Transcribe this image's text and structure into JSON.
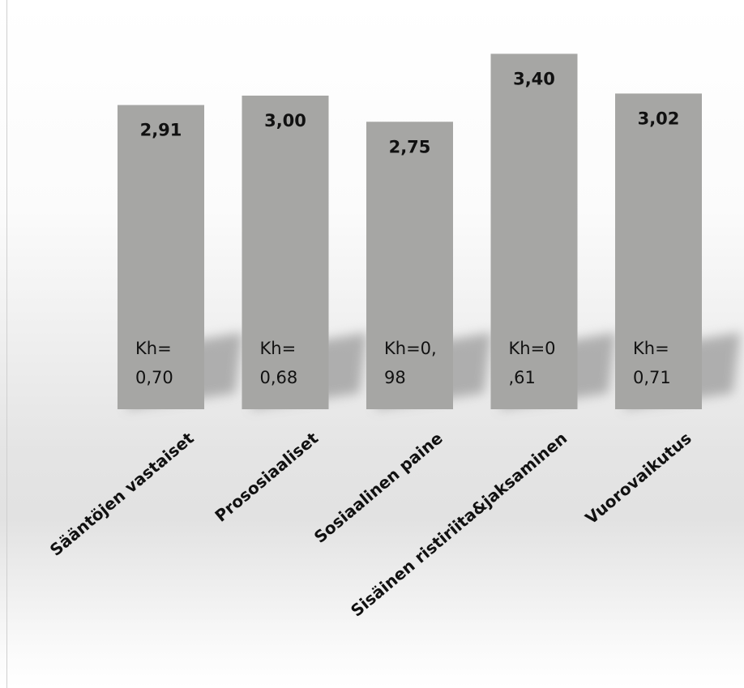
{
  "chart_data": {
    "type": "bar",
    "categories": [
      "Sääntöjen vastaiset",
      "Prososiaaliset",
      "Sosiaalinen paine",
      "Sisäinen ristiriita&jaksaminen",
      "Vuorovaikutus"
    ],
    "values": [
      2.91,
      3.0,
      2.75,
      3.4,
      3.02
    ],
    "value_labels": [
      "2,91",
      "3,00",
      "2,75",
      "3,40",
      "3,02"
    ],
    "sd_labels": [
      [
        "Kh=",
        "0,70"
      ],
      [
        "Kh=",
        "0,68"
      ],
      [
        "Kh=0,",
        "98"
      ],
      [
        "Kh=0",
        ",61"
      ],
      [
        "Kh=",
        "0,71"
      ]
    ],
    "bar_color": "#a6a6a4",
    "shadow_color": "#9a9a9a",
    "title": "",
    "xlabel": "",
    "ylabel": "",
    "grid": false,
    "legend": "none"
  }
}
